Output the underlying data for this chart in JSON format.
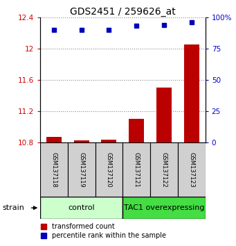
{
  "title": "GDS2451 / 259626_at",
  "samples": [
    "GSM137118",
    "GSM137119",
    "GSM137120",
    "GSM137121",
    "GSM137122",
    "GSM137123"
  ],
  "red_values": [
    10.87,
    10.83,
    10.84,
    11.1,
    11.5,
    12.05
  ],
  "blue_percentiles": [
    90,
    90,
    90,
    93,
    94,
    96
  ],
  "ylim_left": [
    10.8,
    12.4
  ],
  "ylim_right": [
    0,
    100
  ],
  "yticks_left": [
    10.8,
    11.2,
    11.6,
    12.0,
    12.4
  ],
  "yticks_right": [
    0,
    25,
    50,
    75,
    100
  ],
  "ytick_labels_left": [
    "10.8",
    "11.2",
    "11.6",
    "12",
    "12.4"
  ],
  "ytick_labels_right": [
    "0",
    "25",
    "50",
    "75",
    "100%"
  ],
  "groups": [
    {
      "label": "control",
      "indices": [
        0,
        1,
        2
      ],
      "color": "#ccffcc"
    },
    {
      "label": "TAC1 overexpressing",
      "indices": [
        3,
        4,
        5
      ],
      "color": "#44dd44"
    }
  ],
  "bar_color": "#bb0000",
  "dot_color": "#0000bb",
  "grid_color": "#888888",
  "sample_box_color": "#d0d0d0",
  "plot_bg": "#ffffff",
  "left_tick_color": "#cc0000",
  "right_tick_color": "#0000cc",
  "base_value": 10.8,
  "legend_red_label": "transformed count",
  "legend_blue_label": "percentile rank within the sample",
  "title_fontsize": 10,
  "tick_fontsize": 7.5,
  "sample_fontsize": 6,
  "group_fontsize": 8,
  "legend_fontsize": 7,
  "strain_fontsize": 8
}
